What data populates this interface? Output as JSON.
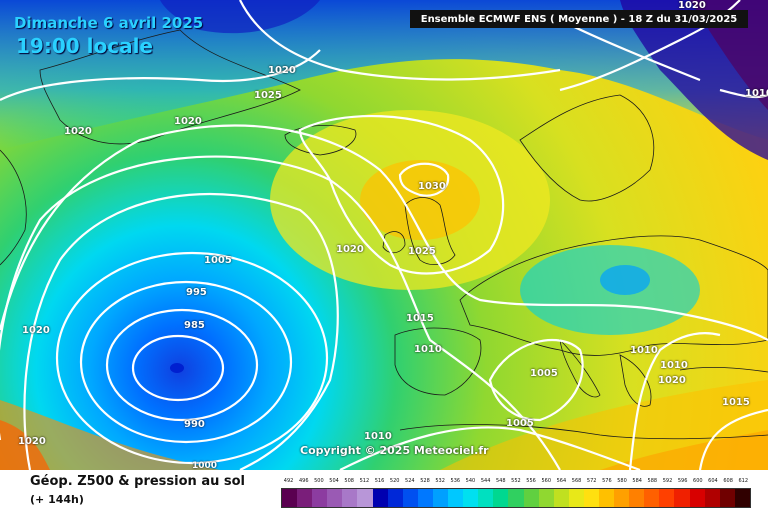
{
  "header": {
    "date": "Dimanche 6 avril 2025",
    "time": "19:00 locale",
    "model_info": "Ensemble ECMWF ENS  ( Moyenne )  -  18 Z du 31/03/2025"
  },
  "map": {
    "copyright": "Copyright © 2025 Meteociel.fr",
    "isobar_labels": [
      "1020",
      "1025",
      "1020",
      "1020",
      "1020",
      "1010",
      "1030",
      "1020",
      "1025",
      "1005",
      "995",
      "985",
      "1015",
      "1010",
      "1005",
      "1010",
      "1010",
      "1015",
      "990",
      "1020",
      "1010",
      "1005",
      "1000",
      "1020",
      "1020"
    ]
  },
  "footer": {
    "title": "Géop. Z500 & pression au sol",
    "subtitle": "(+ 144h)"
  },
  "scale": {
    "labels": [
      "492",
      "496",
      "500",
      "504",
      "508",
      "512",
      "516",
      "520",
      "524",
      "528",
      "532",
      "536",
      "540",
      "544",
      "548",
      "552",
      "556",
      "560",
      "564",
      "568",
      "572",
      "576",
      "580",
      "584",
      "588",
      "592",
      "596",
      "600",
      "604",
      "608",
      "612"
    ],
    "colors": [
      "#5a0050",
      "#7a1e7a",
      "#8c3ca0",
      "#9a5ab4",
      "#a878c8",
      "#b896d8",
      "#0000b0",
      "#0028d8",
      "#0050f0",
      "#0078ff",
      "#00a0ff",
      "#00c8ff",
      "#00e0f0",
      "#00e0c0",
      "#00d890",
      "#30d060",
      "#60d040",
      "#90d830",
      "#c0e020",
      "#e8e818",
      "#ffe010",
      "#ffc000",
      "#ffa000",
      "#ff8000",
      "#ff6000",
      "#ff4000",
      "#f02000",
      "#d80000",
      "#b00000",
      "#700000",
      "#300000"
    ]
  }
}
